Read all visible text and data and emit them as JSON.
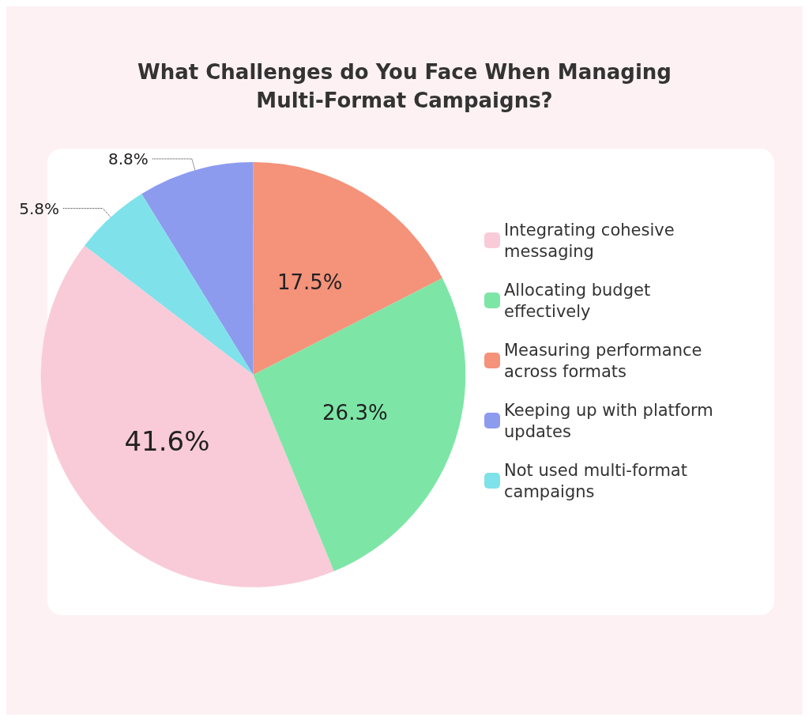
{
  "chart_data": {
    "type": "pie",
    "title": "What Challenges do You Face When Managing\nMulti-Format Campaigns?",
    "categories": [
      "Integrating cohesive messaging",
      "Allocating budget effectively",
      "Measuring performance across formats",
      "Keeping up with platform updates",
      "Not used multi-format campaigns"
    ],
    "values": [
      41.6,
      26.3,
      17.5,
      8.8,
      5.8
    ],
    "value_labels": [
      "41.6%",
      "26.3%",
      "17.5%",
      "8.8%",
      "5.8%"
    ],
    "colors": [
      "#f9cbd8",
      "#7de6a6",
      "#f4927a",
      "#8d9bef",
      "#7fe2ea"
    ],
    "legend": "right"
  }
}
